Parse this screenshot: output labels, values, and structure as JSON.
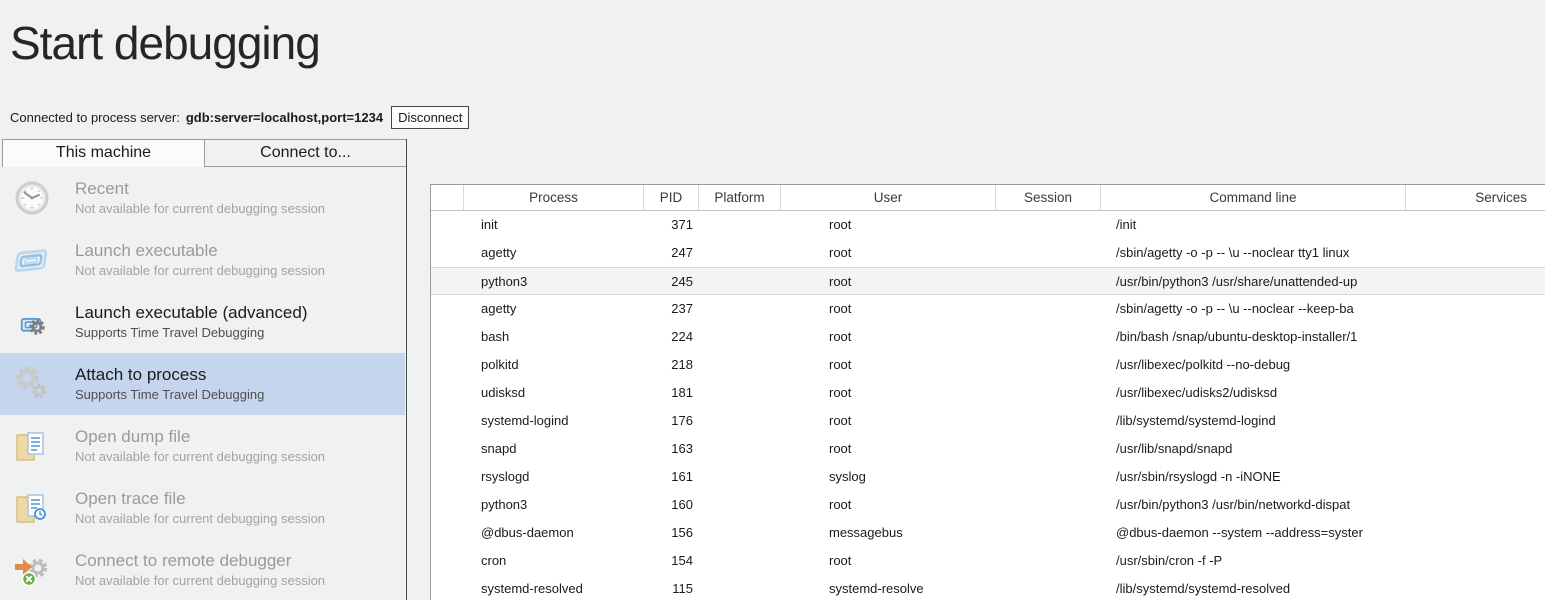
{
  "page": {
    "title": "Start debugging"
  },
  "connection": {
    "label": "Connected to process server:",
    "value": "gdb:server=localhost,port=1234",
    "disconnect_label": "Disconnect"
  },
  "tabs": [
    {
      "label": "This machine",
      "active": true
    },
    {
      "label": "Connect to...",
      "active": false
    }
  ],
  "sidebar": {
    "items": [
      {
        "icon": "recent-clock-icon",
        "title": "Recent",
        "subtitle": "Not available for current debugging session",
        "state": "disabled"
      },
      {
        "icon": "launch-executable-icon",
        "title": "Launch executable",
        "subtitle": "Not available for current debugging session",
        "state": "disabled"
      },
      {
        "icon": "launch-executable-advanced-icon",
        "title": "Launch executable (advanced)",
        "subtitle": "Supports Time Travel Debugging",
        "state": "enabled"
      },
      {
        "icon": "attach-to-process-icon",
        "title": "Attach to process",
        "subtitle": "Supports Time Travel Debugging",
        "state": "selected"
      },
      {
        "icon": "open-dump-file-icon",
        "title": "Open dump file",
        "subtitle": "Not available for current debugging session",
        "state": "disabled"
      },
      {
        "icon": "open-trace-file-icon",
        "title": "Open trace file",
        "subtitle": "Not available for current debugging session",
        "state": "disabled"
      },
      {
        "icon": "connect-remote-debugger-icon",
        "title": "Connect to remote debugger",
        "subtitle": "Not available for current debugging session",
        "state": "disabled"
      }
    ]
  },
  "process_table": {
    "columns": [
      "",
      "Process",
      "PID",
      "Platform",
      "User",
      "Session",
      "Command line",
      "Services"
    ],
    "rows": [
      {
        "process": "init",
        "pid": "371",
        "platform": "",
        "user": "root",
        "session": "",
        "command": "/init",
        "services": "",
        "highlight": false
      },
      {
        "process": "agetty",
        "pid": "247",
        "platform": "",
        "user": "root",
        "session": "",
        "command": "/sbin/agetty -o -p -- \\u --noclear tty1 linux",
        "services": "",
        "highlight": false
      },
      {
        "process": "python3",
        "pid": "245",
        "platform": "",
        "user": "root",
        "session": "",
        "command": "/usr/bin/python3 /usr/share/unattended-up",
        "services": "",
        "highlight": true
      },
      {
        "process": "agetty",
        "pid": "237",
        "platform": "",
        "user": "root",
        "session": "",
        "command": "/sbin/agetty -o -p -- \\u --noclear --keep-ba",
        "services": "",
        "highlight": false
      },
      {
        "process": "bash",
        "pid": "224",
        "platform": "",
        "user": "root",
        "session": "",
        "command": "/bin/bash /snap/ubuntu-desktop-installer/1",
        "services": "",
        "highlight": false
      },
      {
        "process": "polkitd",
        "pid": "218",
        "platform": "",
        "user": "root",
        "session": "",
        "command": "/usr/libexec/polkitd --no-debug",
        "services": "",
        "highlight": false
      },
      {
        "process": "udisksd",
        "pid": "181",
        "platform": "",
        "user": "root",
        "session": "",
        "command": "/usr/libexec/udisks2/udisksd",
        "services": "",
        "highlight": false
      },
      {
        "process": "systemd-logind",
        "pid": "176",
        "platform": "",
        "user": "root",
        "session": "",
        "command": "/lib/systemd/systemd-logind",
        "services": "",
        "highlight": false
      },
      {
        "process": "snapd",
        "pid": "163",
        "platform": "",
        "user": "root",
        "session": "",
        "command": "/usr/lib/snapd/snapd",
        "services": "",
        "highlight": false
      },
      {
        "process": "rsyslogd",
        "pid": "161",
        "platform": "",
        "user": "syslog",
        "session": "",
        "command": "/usr/sbin/rsyslogd -n -iNONE",
        "services": "",
        "highlight": false
      },
      {
        "process": "python3",
        "pid": "160",
        "platform": "",
        "user": "root",
        "session": "",
        "command": "/usr/bin/python3 /usr/bin/networkd-dispat",
        "services": "",
        "highlight": false
      },
      {
        "process": "@dbus-daemon",
        "pid": "156",
        "platform": "",
        "user": "messagebus",
        "session": "",
        "command": "@dbus-daemon --system --address=syster",
        "services": "",
        "highlight": false
      },
      {
        "process": "cron",
        "pid": "154",
        "platform": "",
        "user": "root",
        "session": "",
        "command": "/usr/sbin/cron -f -P",
        "services": "",
        "highlight": false
      },
      {
        "process": "systemd-resolved",
        "pid": "115",
        "platform": "",
        "user": "systemd-resolve",
        "session": "",
        "command": "/lib/systemd/systemd-resolved",
        "services": "",
        "highlight": false
      }
    ]
  },
  "colors": {
    "page_background": "#f0f1f1",
    "selected_item_background": "#c5d5ee",
    "hover_row_background": "#f4f4f4",
    "table_border": "#9b9b9b",
    "icon_blue": "#9cc3e8",
    "icon_orange": "#e08a4e",
    "icon_green": "#6ab04c",
    "folder_tan": "#eed9a4"
  }
}
